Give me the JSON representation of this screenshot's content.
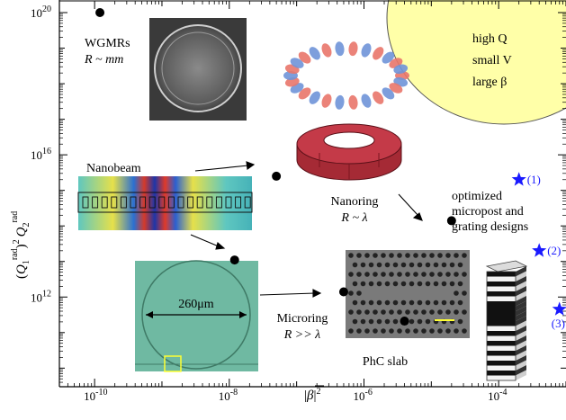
{
  "chart_data": {
    "type": "scatter",
    "xlabel": "|β̄|²",
    "ylabel": "(Q1rad)² Q2rad",
    "x_scale": "log",
    "y_scale": "log",
    "xlim": [
      3e-11,
      0.001
    ],
    "ylim": [
      3000000000.0,
      1e+20
    ],
    "x_ticks": [
      "10-10",
      "10-8",
      "10-6",
      "10-4"
    ],
    "y_ticks": [
      "1012",
      "1016",
      "1020"
    ],
    "region": {
      "lines": [
        "high Q",
        "small V",
        "large β"
      ],
      "color": "#ffffa8"
    },
    "series": [
      {
        "marker": "circle",
        "color": "#000000",
        "points": [
          {
            "label": "WGMRs",
            "sublabel": "R ~ mm",
            "x": 1.2e-10,
            "y": 1e+20
          },
          {
            "label": "Nanobeam",
            "x": 5e-08,
            "y": 2500000000000000.0
          },
          {
            "label": "",
            "x": 1.2e-08,
            "y": 11000000000000.0
          },
          {
            "label": "Nanoring",
            "sublabel": "R ~ λ",
            "x": 2e-05,
            "y": 140000000000000.0
          },
          {
            "label": "Microring",
            "sublabel": "R >> λ",
            "x": 5e-07,
            "y": 1400000000000.0
          },
          {
            "label": "PhC slab",
            "x": 4e-06,
            "y": 210000000000.0
          }
        ]
      },
      {
        "marker": "star",
        "color": "#1a1aff",
        "name": "optimized micropost and grating designs",
        "points": [
          {
            "label": "(1)",
            "x": 0.0002,
            "y": 2000000000000000.0
          },
          {
            "label": "(2)",
            "x": 0.0004,
            "y": 20000000000000.0
          },
          {
            "label": "(3)",
            "x": 0.0008,
            "y": 450000000000.0
          }
        ]
      }
    ]
  },
  "annotations": {
    "wgmr_name": "WGMRs",
    "wgmr_size": "R ~ mm",
    "nanobeam_name": "Nanobeam",
    "nanoring_name": "Nanoring",
    "nanoring_size": "R ~ λ",
    "microring_name": "Microring",
    "microring_size": "R >> λ",
    "microring_diameter": "260μm",
    "phc_name": "PhC slab",
    "optimized_line1": "optimized",
    "optimized_line2": "micropost and",
    "optimized_line3": "grating designs",
    "star1": "(1)",
    "star2": "(2)",
    "star3": "(3)",
    "region_line1": "high Q",
    "region_line2": "small V",
    "region_line3": "large β"
  }
}
